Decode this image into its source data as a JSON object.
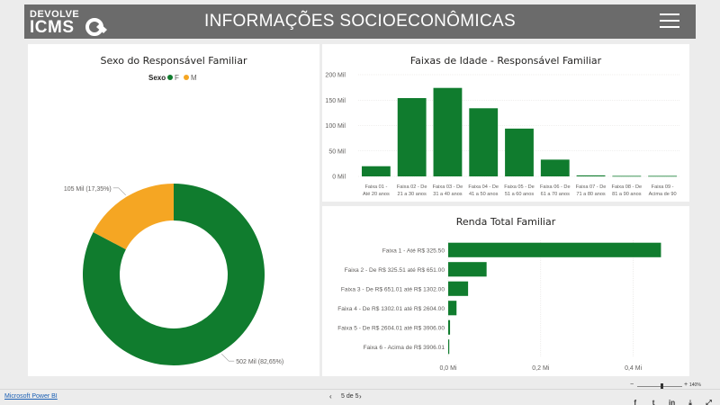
{
  "header": {
    "logo_line1": "DEVOLVE",
    "logo_line2": "ICMS",
    "title": "INFORMAÇÕES SOCIOECONÔMICAS"
  },
  "colors": {
    "green": "#107c2e",
    "orange": "#f5a623",
    "header_bg": "#6b6b6b"
  },
  "panels": {
    "sexo": {
      "title": "Sexo do Responsável Familiar"
    },
    "idade": {
      "title": "Faixas de Idade - Responsável Familiar"
    },
    "renda": {
      "title": "Renda Total Familiar"
    }
  },
  "chart_data": [
    {
      "type": "pie",
      "title": "Sexo do Responsável Familiar",
      "legend_title": "Sexo",
      "legend_position": "top",
      "slices": [
        {
          "name": "F",
          "value": 502,
          "label": "502 Mil (82,65%)",
          "color": "#107c2e"
        },
        {
          "name": "M",
          "value": 105,
          "label": "105 Mil (17,35%)",
          "color": "#f5a623"
        }
      ]
    },
    {
      "type": "bar",
      "title": "Faixas de Idade - Responsável Familiar",
      "categories": [
        [
          "Faixa 01 -",
          "Até 20 anos"
        ],
        [
          "Faixa 02 - De",
          "21 a 30 anos"
        ],
        [
          "Faixa 03 - De",
          "31 a 40 anos"
        ],
        [
          "Faixa 04 - De",
          "41 a 50 anos"
        ],
        [
          "Faixa 05 - De",
          "51 a 60 anos"
        ],
        [
          "Faixa 06 - De",
          "61 a 70 anos"
        ],
        [
          "Faixa 07 - De",
          "71 a 80 anos"
        ],
        [
          "Faixa 08 - De",
          "81 a 90 anos"
        ],
        [
          "Faixa 09 -",
          "Acima de 90"
        ]
      ],
      "values": [
        20,
        154,
        174,
        134,
        94,
        33,
        2,
        1,
        1
      ],
      "ylim": [
        0,
        200
      ],
      "yticks": [
        {
          "value": 0,
          "label": "0 Mil"
        },
        {
          "value": 50,
          "label": "50 Mil"
        },
        {
          "value": 100,
          "label": "100 Mil"
        },
        {
          "value": 150,
          "label": "150 Mil"
        },
        {
          "value": 200,
          "label": "200 Mil"
        }
      ],
      "unit": "Mil",
      "color": "#107c2e"
    },
    {
      "type": "bar",
      "orientation": "horizontal",
      "title": "Renda Total Familiar",
      "categories": [
        "Faixa 1 - Até R$ 325.50",
        "Faixa 2 - De R$ 325.51 até R$ 651.00",
        "Faixa 3 - De R$ 651.01 até R$ 1302.00",
        "Faixa 4 - De R$ 1302.01 até R$ 2604.00",
        "Faixa 5 - De R$ 2604.01 até R$ 3906.00",
        "Faixa 6 - Acima de R$ 3906.01"
      ],
      "values": [
        0.46,
        0.083,
        0.043,
        0.018,
        0.004,
        0.001
      ],
      "xlim": [
        0,
        0.5
      ],
      "xticks": [
        {
          "value": 0,
          "label": "0,0 Mi"
        },
        {
          "value": 0.2,
          "label": "0,2 Mi"
        },
        {
          "value": 0.4,
          "label": "0,4 Mi"
        }
      ],
      "unit": "Mi",
      "color": "#107c2e"
    }
  ],
  "footer": {
    "link": "Microsoft Power BI",
    "prev": "‹",
    "next": "›",
    "page": "5 de 5",
    "zoom": "140%",
    "share_icons": [
      "facebook-icon",
      "twitter-icon",
      "linkedin-icon",
      "download-icon",
      "fullscreen-icon"
    ]
  }
}
